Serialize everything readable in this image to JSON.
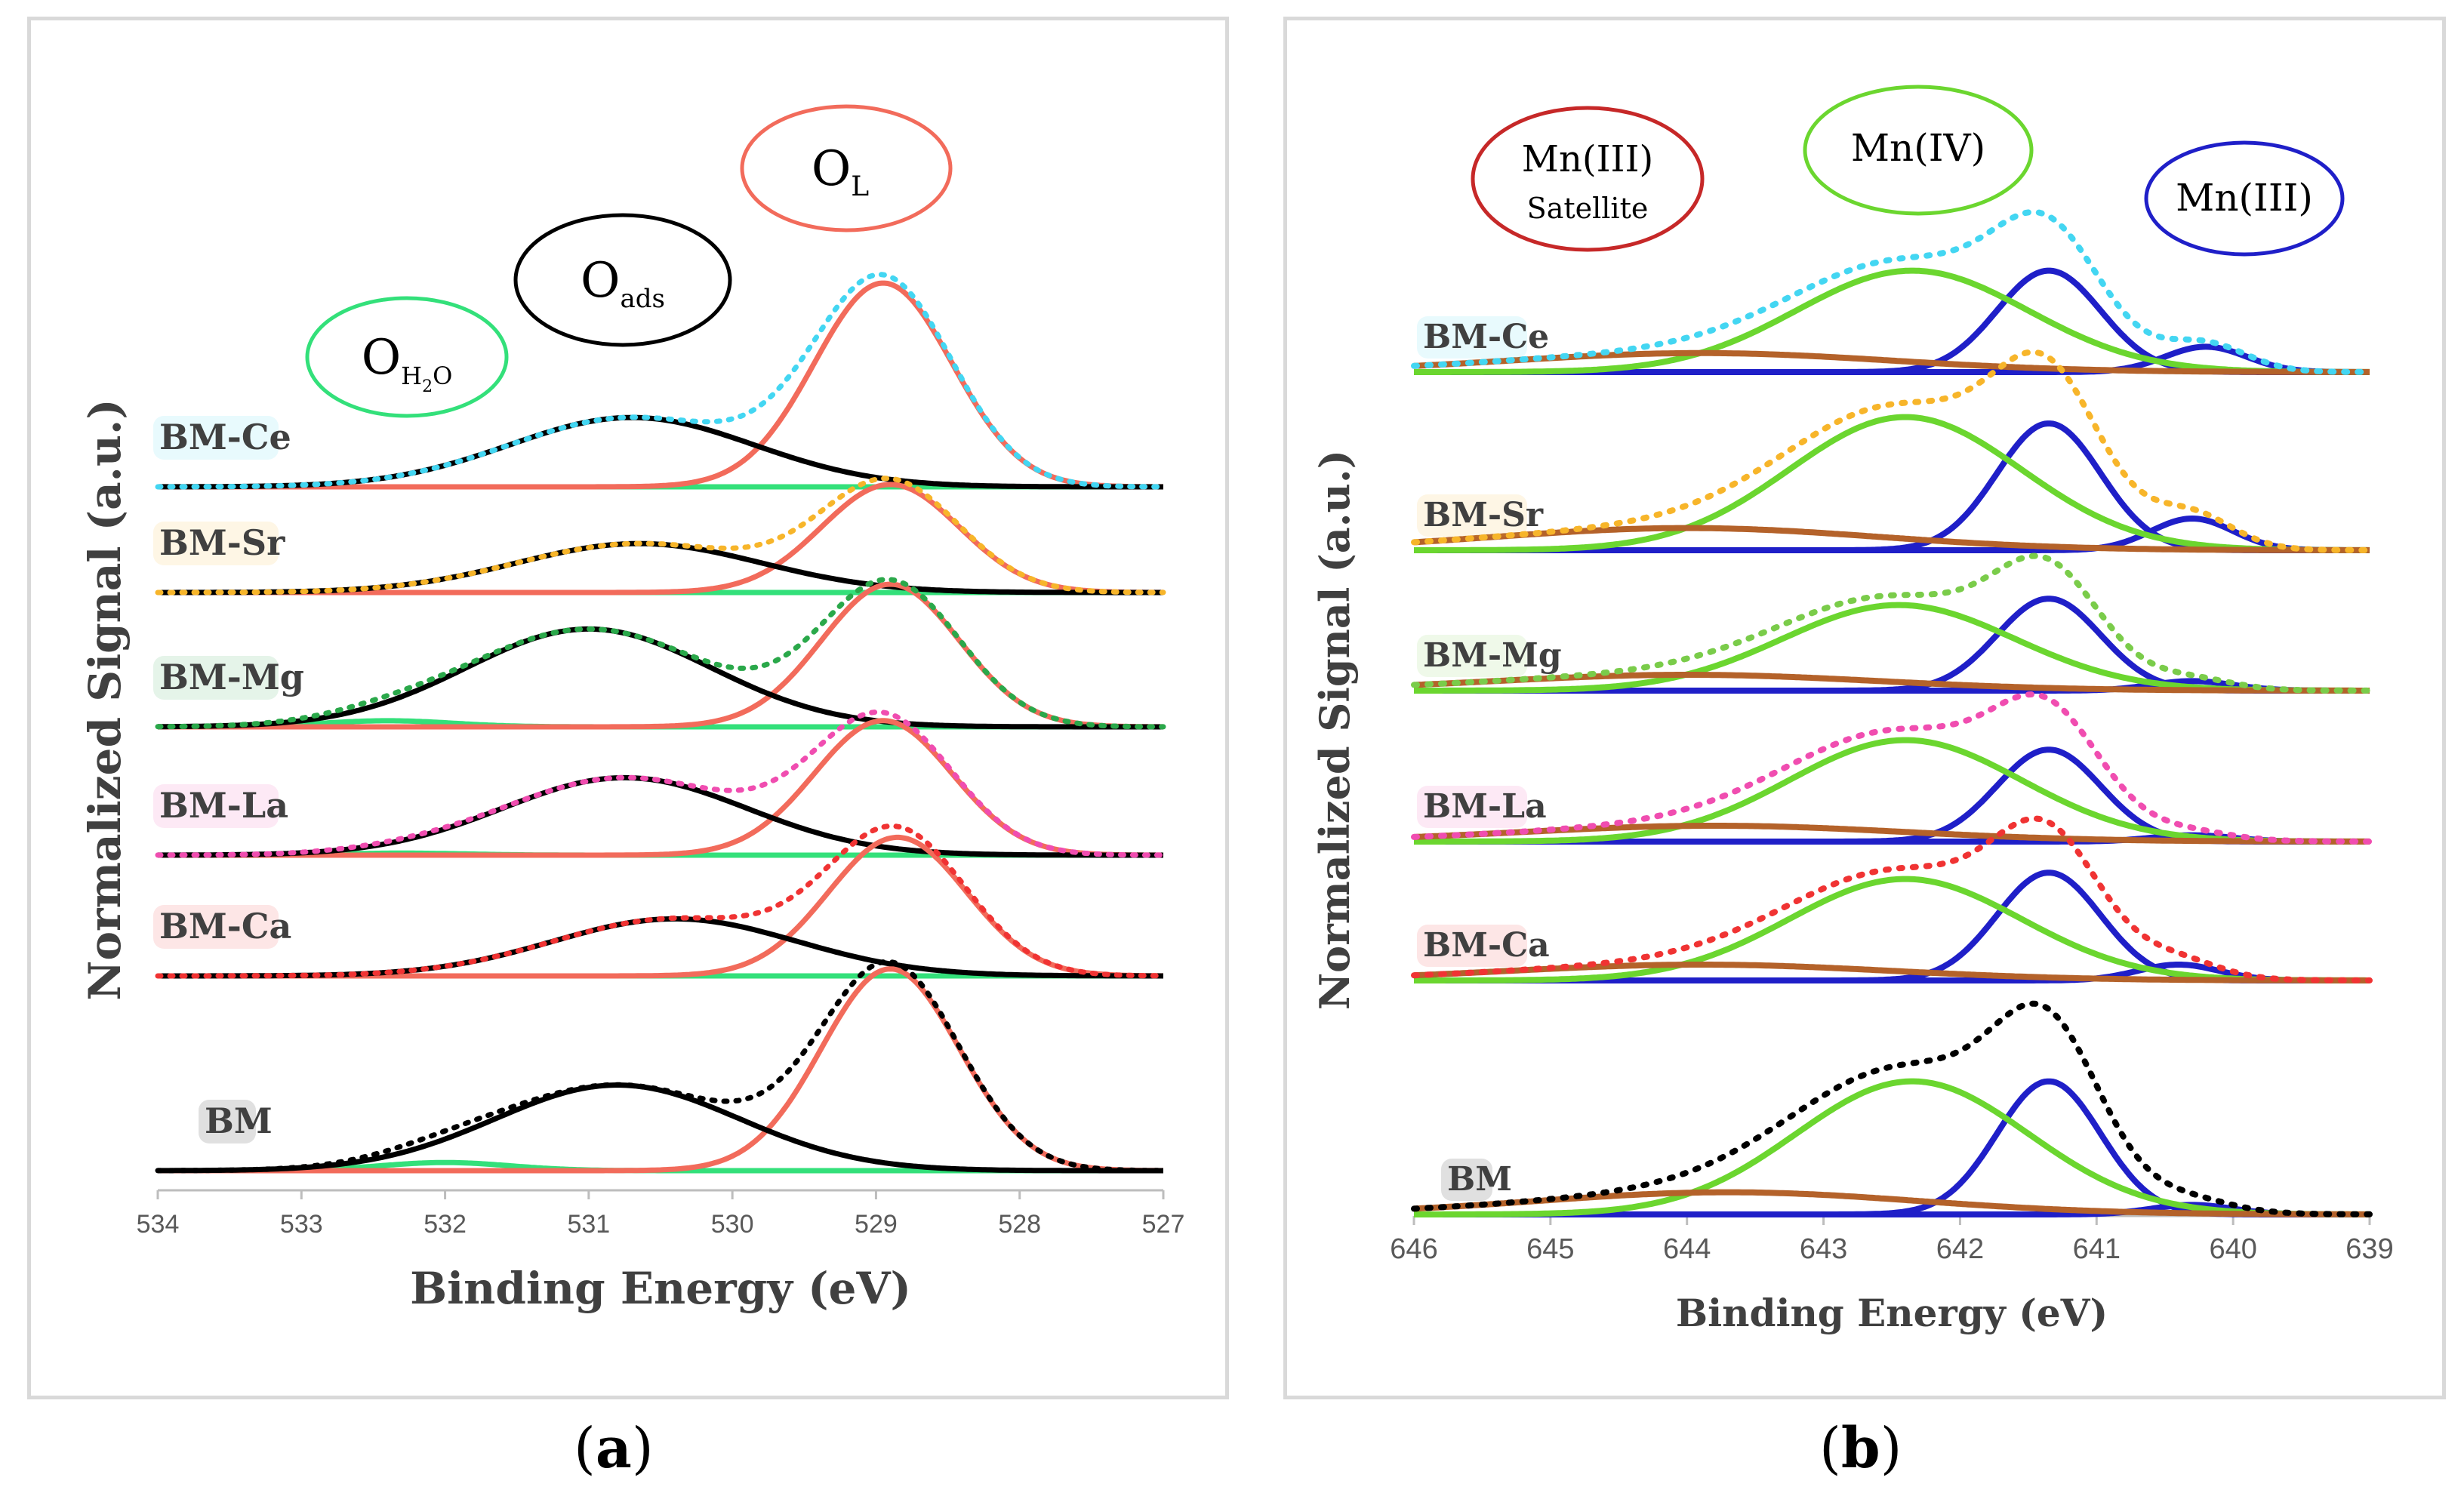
{
  "chart_data": [
    {
      "type": "line",
      "panel_label": "a",
      "xlabel": "Binding Energy (eV)",
      "ylabel": "Normalized Signal (a.u.)",
      "xlim": [
        534,
        527
      ],
      "x_ticks": [
        "534",
        "533",
        "532",
        "531",
        "530",
        "529",
        "528",
        "527"
      ],
      "colors": {
        "OH2O": "#33e07a",
        "Oads": "#000000",
        "OL": "#f26b5b"
      },
      "peak_labels": [
        {
          "main": "O",
          "sub": "H",
          "sub2": "2",
          "sub3": "O",
          "color": "#33e07a"
        },
        {
          "main": "O",
          "sub": "ads",
          "color": "#000000"
        },
        {
          "main": "O",
          "sub": "L",
          "color": "#f26b5b"
        }
      ],
      "series": [
        {
          "name": "BM-Ce",
          "envelope_color": "#43d6f2",
          "OH2O": {
            "center": 532.0,
            "height": 0.0
          },
          "Oads": {
            "center": 530.7,
            "height": 0.34
          },
          "OL": {
            "center": 528.95,
            "height": 1.0
          }
        },
        {
          "name": "BM-Sr",
          "envelope_color": "#f7b52a",
          "OH2O": {
            "center": 532.2,
            "height": 0.0
          },
          "Oads": {
            "center": 530.65,
            "height": 0.24
          },
          "OL": {
            "center": 528.9,
            "height": 0.53
          }
        },
        {
          "name": "BM-Mg",
          "envelope_color": "#2aa84a",
          "OH2O": {
            "center": 532.4,
            "height": 0.03
          },
          "Oads": {
            "center": 531.0,
            "height": 0.48
          },
          "OL": {
            "center": 528.9,
            "height": 0.7
          }
        },
        {
          "name": "BM-La",
          "envelope_color": "#f04db0",
          "OH2O": {
            "center": 532.3,
            "height": 0.01
          },
          "Oads": {
            "center": 530.75,
            "height": 0.38
          },
          "OL": {
            "center": 528.95,
            "height": 0.66
          }
        },
        {
          "name": "BM-Ca",
          "envelope_color": "#f03333",
          "OH2O": {
            "center": 532.5,
            "height": 0.0
          },
          "Oads": {
            "center": 530.4,
            "height": 0.28
          },
          "OL": {
            "center": 528.85,
            "height": 0.68
          }
        },
        {
          "name": "BM",
          "envelope_color": "#000000",
          "OH2O": {
            "center": 532.0,
            "height": 0.04
          },
          "Oads": {
            "center": 530.8,
            "height": 0.42
          },
          "OL": {
            "center": 528.9,
            "height": 0.99
          }
        }
      ]
    },
    {
      "type": "line",
      "panel_label": "b",
      "xlabel": "Binding Energy (eV)",
      "ylabel": "Normalized Signal (a.u.)",
      "xlim": [
        646,
        639
      ],
      "x_ticks": [
        "646",
        "645",
        "644",
        "643",
        "642",
        "641",
        "640",
        "639"
      ],
      "colors": {
        "MnIII_sat": "#b4622a",
        "MnIV": "#6bd62f",
        "MnIII": "#1f1fc8"
      },
      "peak_labels": [
        {
          "line1": "Mn(III)",
          "line2": "Satellite",
          "color": "#c62828"
        },
        {
          "line1": "Mn(IV)",
          "color": "#6bd62f"
        },
        {
          "line1": "Mn(III)",
          "color": "#1f1fc8"
        }
      ],
      "series": [
        {
          "name": "BM-Ce",
          "envelope_color": "#43d6f2",
          "MnIII_sat": {
            "center": 643.9,
            "height": 0.06
          },
          "MnIV": {
            "center": 642.35,
            "height": 0.32
          },
          "MnIII": {
            "center": 641.35,
            "height": 0.32
          },
          "MnIII_b": {
            "center": 640.2,
            "height": 0.08
          }
        },
        {
          "name": "BM-Sr",
          "envelope_color": "#f7b52a",
          "MnIII_sat": {
            "center": 644.0,
            "height": 0.07
          },
          "MnIV": {
            "center": 642.4,
            "height": 0.42
          },
          "MnIII": {
            "center": 641.35,
            "height": 0.4
          },
          "MnIII_b": {
            "center": 640.3,
            "height": 0.1
          }
        },
        {
          "name": "BM-Mg",
          "envelope_color": "#7acc4a",
          "MnIII_sat": {
            "center": 644.0,
            "height": 0.05
          },
          "MnIV": {
            "center": 642.45,
            "height": 0.27
          },
          "MnIII": {
            "center": 641.35,
            "height": 0.29
          },
          "MnIII_b": {
            "center": 640.3,
            "height": 0.03
          }
        },
        {
          "name": "BM-La",
          "envelope_color": "#f04db0",
          "MnIII_sat": {
            "center": 643.8,
            "height": 0.05
          },
          "MnIV": {
            "center": 642.4,
            "height": 0.32
          },
          "MnIII": {
            "center": 641.35,
            "height": 0.29
          },
          "MnIII_b": {
            "center": 640.3,
            "height": 0.02
          }
        },
        {
          "name": "BM-Ca",
          "envelope_color": "#f03333",
          "MnIII_sat": {
            "center": 643.9,
            "height": 0.05
          },
          "MnIV": {
            "center": 642.4,
            "height": 0.32
          },
          "MnIII": {
            "center": 641.35,
            "height": 0.34
          },
          "MnIII_b": {
            "center": 640.4,
            "height": 0.05
          }
        },
        {
          "name": "BM",
          "envelope_color": "#000000",
          "MnIII_sat": {
            "center": 643.7,
            "height": 0.07
          },
          "MnIV": {
            "center": 642.35,
            "height": 0.42
          },
          "MnIII": {
            "center": 641.35,
            "height": 0.42
          },
          "MnIII_b": {
            "center": 640.3,
            "height": 0.03
          }
        }
      ]
    }
  ],
  "labels": {
    "a": "a",
    "b": "b"
  }
}
